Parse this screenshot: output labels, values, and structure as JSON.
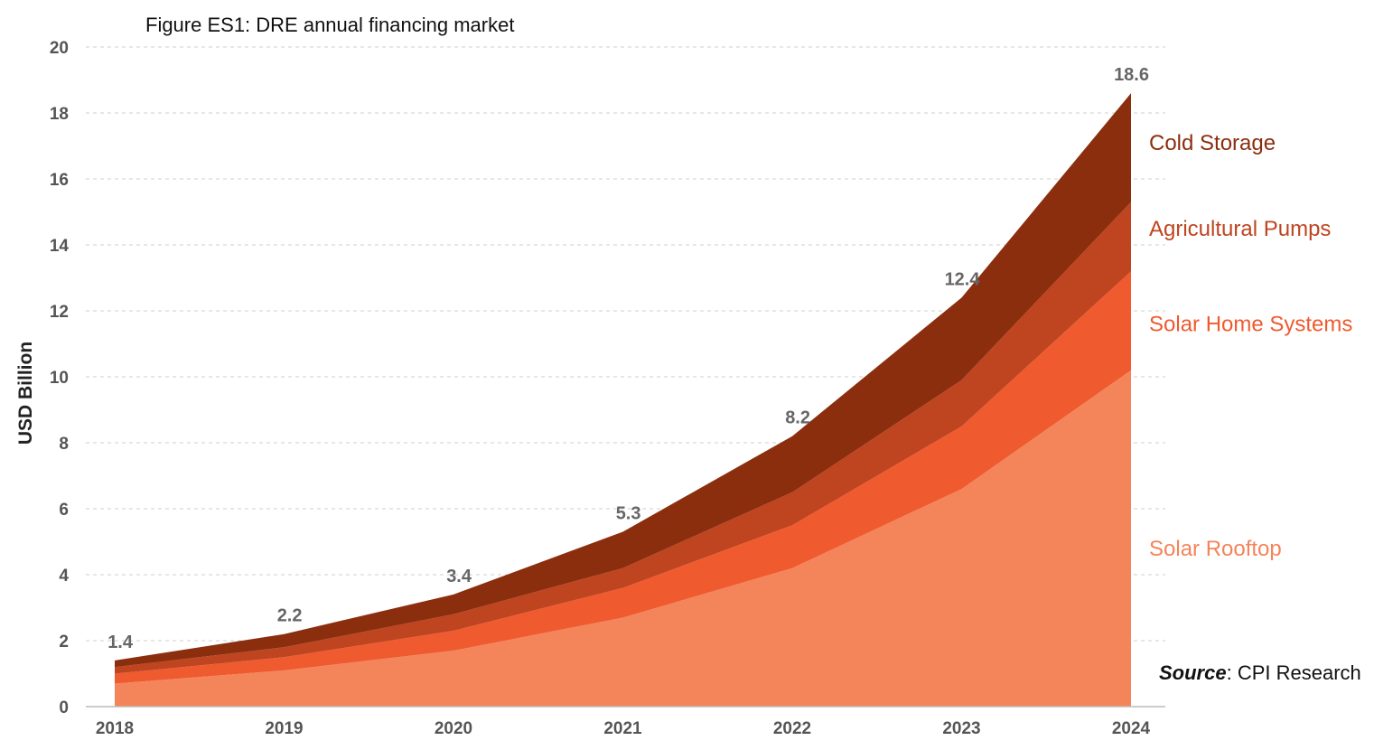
{
  "chart_data": {
    "type": "area",
    "stacked": true,
    "title": "Figure ES1: DRE annual financing market",
    "ylabel": "USD Billion",
    "xlabel": "",
    "ylim": [
      0,
      20
    ],
    "yticks": [
      "0",
      "2",
      "4",
      "6",
      "8",
      "10",
      "12",
      "14",
      "16",
      "18",
      "20"
    ],
    "grid": true,
    "x": [
      "2018",
      "2019",
      "2020",
      "2021",
      "2022",
      "2023",
      "2024"
    ],
    "series": [
      {
        "name": "Solar Rooftop",
        "color": "#f4845a",
        "values": [
          0.7,
          1.1,
          1.7,
          2.7,
          4.2,
          6.6,
          10.2
        ]
      },
      {
        "name": "Solar Home Systems",
        "color": "#ef5a2f",
        "values": [
          0.3,
          0.4,
          0.6,
          0.9,
          1.3,
          1.9,
          3.0
        ]
      },
      {
        "name": "Agricultural Pumps",
        "color": "#bf4420",
        "values": [
          0.2,
          0.3,
          0.5,
          0.6,
          1.0,
          1.4,
          2.1
        ]
      },
      {
        "name": "Cold Storage",
        "color": "#8b2e0e",
        "values": [
          0.2,
          0.4,
          0.6,
          1.1,
          1.7,
          2.5,
          3.3
        ]
      }
    ],
    "totals": [
      "1.4",
      "2.2",
      "3.4",
      "5.3",
      "8.2",
      "12.4",
      "18.6"
    ],
    "legend_placement": "right, at end of series"
  },
  "source": {
    "label": "Source",
    "text": ": CPI Research"
  }
}
